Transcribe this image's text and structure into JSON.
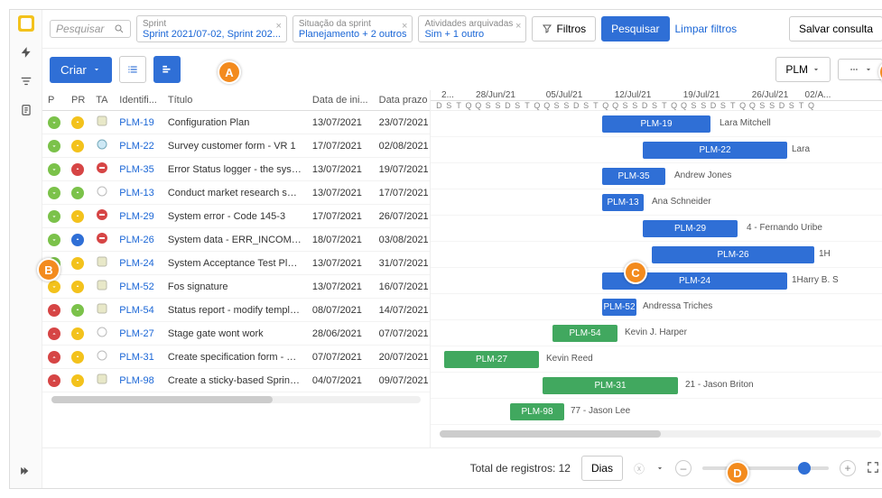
{
  "search_placeholder": "Pesquisar",
  "chips": [
    {
      "label": "Sprint",
      "value": "Sprint 2021/07-02, Sprint 202..."
    },
    {
      "label": "Situação da sprint",
      "value": "Planejamento + 2 outros"
    },
    {
      "label": "Atividades arquivadas",
      "value": "Sim + 1 outro"
    }
  ],
  "btn_filters": "Filtros",
  "btn_search": "Pesquisar",
  "link_clear": "Limpar filtros",
  "btn_save_query": "Salvar consulta",
  "btn_create": "Criar",
  "dd_plm": "PLM",
  "cols": {
    "p": "P",
    "pr": "PR",
    "ta": "TA",
    "ident": "Identifi...",
    "titulo": "Título",
    "ini": "Data de ini...",
    "prazo": "Data prazo"
  },
  "rows": [
    {
      "p": "#7bc24a",
      "pr": "#f3c21c",
      "ta": "doc",
      "id": "PLM-19",
      "t": "Configuration Plan",
      "d1": "13/07/2021",
      "d2": "23/07/2021",
      "barL": 190,
      "barW": 120,
      "barC": "#2f6fd6",
      "txt": "PLM-19",
      "as": "Lara Mitchell",
      "asL": 320
    },
    {
      "p": "#7bc24a",
      "pr": "#f3c21c",
      "ta": "globe",
      "id": "PLM-22",
      "t": "Survey customer form - VR 1",
      "d1": "17/07/2021",
      "d2": "02/08/2021",
      "barL": 235,
      "barW": 160,
      "barC": "#2f6fd6",
      "txt": "PLM-22",
      "as": "Lara",
      "asL": 400
    },
    {
      "p": "#7bc24a",
      "pr": "#d64545",
      "ta": "red",
      "id": "PLM-35",
      "t": "Error Status logger - the system ...",
      "d1": "13/07/2021",
      "d2": "19/07/2021",
      "barL": 190,
      "barW": 70,
      "barC": "#2f6fd6",
      "txt": "PLM-35",
      "as": "Andrew Jones",
      "asL": 270
    },
    {
      "p": "#7bc24a",
      "pr": "#7bc24a",
      "ta": "circ",
      "id": "PLM-13",
      "t": "Conduct market research surveys",
      "d1": "13/07/2021",
      "d2": "17/07/2021",
      "barL": 190,
      "barW": 46,
      "barC": "#2f6fd6",
      "txt": "PLM-13",
      "as": "Ana Schneider",
      "asL": 245
    },
    {
      "p": "#7bc24a",
      "pr": "#f3c21c",
      "ta": "red",
      "id": "PLM-29",
      "t": "System error - Code 145-3",
      "d1": "17/07/2021",
      "d2": "26/07/2021",
      "barL": 235,
      "barW": 105,
      "barC": "#2f6fd6",
      "txt": "PLM-29",
      "as": "4 - Fernando Uribe",
      "asL": 350
    },
    {
      "p": "#7bc24a",
      "pr": "#2f6fd6",
      "ta": "red",
      "id": "PLM-26",
      "t": "System data - ERR_INCOMPLE...",
      "d1": "18/07/2021",
      "d2": "03/08/2021",
      "barL": 245,
      "barW": 180,
      "barC": "#2f6fd6",
      "txt": "PLM-26",
      "as": "1H",
      "asL": 430
    },
    {
      "p": "#7bc24a",
      "pr": "#f3c21c",
      "ta": "doc",
      "id": "PLM-24",
      "t": "System Acceptance Test Plan - ...",
      "d1": "13/07/2021",
      "d2": "31/07/2021",
      "barL": 190,
      "barW": 205,
      "barC": "#2f6fd6",
      "txt": "PLM-24",
      "as": "1Harry B. S",
      "asL": 400
    },
    {
      "p": "#f3c21c",
      "pr": "#f3c21c",
      "ta": "doc",
      "id": "PLM-52",
      "t": "Fos signature",
      "d1": "13/07/2021",
      "d2": "16/07/2021",
      "barL": 190,
      "barW": 38,
      "barC": "#2f6fd6",
      "txt": "PLM-52",
      "as": "Andressa Triches",
      "asL": 235
    },
    {
      "p": "#d64545",
      "pr": "#7bc24a",
      "ta": "doc",
      "id": "PLM-54",
      "t": "Status report - modify template ...",
      "d1": "08/07/2021",
      "d2": "14/07/2021",
      "barL": 135,
      "barW": 72,
      "barC": "#41a85f",
      "txt": "PLM-54",
      "as": "Kevin J. Harper",
      "asL": 215
    },
    {
      "p": "#d64545",
      "pr": "#f3c21c",
      "ta": "circ",
      "id": "PLM-27",
      "t": "Stage gate wont work",
      "d1": "28/06/2021",
      "d2": "07/07/2021",
      "barL": 15,
      "barW": 105,
      "barC": "#41a85f",
      "txt": "PLM-27",
      "as": "Kevin Reed",
      "asL": 128
    },
    {
      "p": "#d64545",
      "pr": "#f3c21c",
      "ta": "circ",
      "id": "PLM-31",
      "t": "Create specification form - New ...",
      "d1": "07/07/2021",
      "d2": "20/07/2021",
      "barL": 124,
      "barW": 150,
      "barC": "#41a85f",
      "txt": "PLM-31",
      "as": "21 - Jason Briton",
      "asL": 282
    },
    {
      "p": "#d64545",
      "pr": "#f3c21c",
      "ta": "doc",
      "id": "PLM-98",
      "t": "Create a sticky-based Sprint Ba...",
      "d1": "04/07/2021",
      "d2": "09/07/2021",
      "barL": 88,
      "barW": 60,
      "barC": "#41a85f",
      "txt": "PLM-98",
      "as": "77 - Jason Lee",
      "asL": 155
    }
  ],
  "weeks": [
    "2...",
    "28/Jun/21",
    "05/Jul/21",
    "12/Jul/21",
    "19/Jul/21",
    "26/Jul/21",
    "02/A..."
  ],
  "days": "DSTQQSSDSTQQSSDSTQQSSDSTQQSSDSTQQSSDSTQ",
  "footer_total": "Total de registros: 12",
  "footer_scale": "Dias",
  "callouts": {
    "A": {
      "t": 56,
      "l": 230
    },
    "B": {
      "t": 275,
      "l": 30
    },
    "C": {
      "t": 278,
      "l": 680
    },
    "D": {
      "t": 500,
      "l": 793
    },
    "E": {
      "t": 56,
      "l": 962
    }
  }
}
